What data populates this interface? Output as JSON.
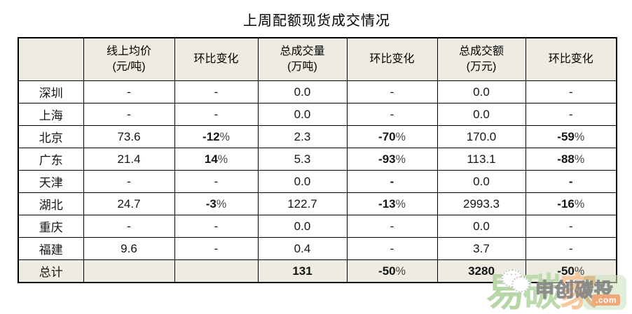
{
  "title": "上周配额现货成交情况",
  "colors": {
    "header_bg": "#EEECE1",
    "total_row_bg": "#EEECE1",
    "negative_green": "#00A650",
    "positive_red": "#C0504D",
    "border": "#000000",
    "watermark_green": "#B6D6A7",
    "watermark_orange": "#F5C9A0"
  },
  "table": {
    "column_headers": [
      "",
      "线上均价\n(元/吨)",
      "环比变化",
      "总成交量\n(万吨)",
      "环比变化",
      "总成交额\n(万元)",
      "环比变化"
    ],
    "rows": [
      {
        "region": "深圳",
        "is_total": false,
        "cells": [
          {
            "text": "-",
            "style": "normal"
          },
          {
            "text": "-",
            "style": "normal"
          },
          {
            "text": "0.0",
            "style": "normal"
          },
          {
            "text": "-",
            "style": "normal"
          },
          {
            "text": "0.0",
            "style": "normal"
          },
          {
            "text": "-",
            "style": "normal"
          }
        ]
      },
      {
        "region": "上海",
        "is_total": false,
        "cells": [
          {
            "text": "-",
            "style": "normal"
          },
          {
            "text": "-",
            "style": "normal"
          },
          {
            "text": "0.0",
            "style": "normal"
          },
          {
            "text": "-",
            "style": "normal"
          },
          {
            "text": "0.0",
            "style": "normal"
          },
          {
            "text": "-",
            "style": "normal"
          }
        ]
      },
      {
        "region": "北京",
        "is_total": false,
        "cells": [
          {
            "text": "73.6",
            "style": "normal"
          },
          {
            "text": "-12%",
            "style": "green"
          },
          {
            "text": "2.3",
            "style": "normal"
          },
          {
            "text": "-70%",
            "style": "green"
          },
          {
            "text": "170.0",
            "style": "normal"
          },
          {
            "text": "-59%",
            "style": "green"
          }
        ]
      },
      {
        "region": "广东",
        "is_total": false,
        "cells": [
          {
            "text": "21.4",
            "style": "normal"
          },
          {
            "text": "14%",
            "style": "red"
          },
          {
            "text": "5.3",
            "style": "normal"
          },
          {
            "text": "-93%",
            "style": "green"
          },
          {
            "text": "113.1",
            "style": "normal"
          },
          {
            "text": "-88%",
            "style": "green"
          }
        ]
      },
      {
        "region": "天津",
        "is_total": false,
        "cells": [
          {
            "text": "-",
            "style": "normal"
          },
          {
            "text": "-",
            "style": "normal"
          },
          {
            "text": "0.0",
            "style": "normal"
          },
          {
            "text": "-",
            "style": "bold"
          },
          {
            "text": "0.0",
            "style": "normal"
          },
          {
            "text": "-",
            "style": "bold"
          }
        ]
      },
      {
        "region": "湖北",
        "is_total": false,
        "cells": [
          {
            "text": "24.7",
            "style": "normal"
          },
          {
            "text": "-3%",
            "style": "green"
          },
          {
            "text": "122.7",
            "style": "normal"
          },
          {
            "text": "-13%",
            "style": "green"
          },
          {
            "text": "2993.3",
            "style": "normal"
          },
          {
            "text": "-16%",
            "style": "green"
          }
        ]
      },
      {
        "region": "重庆",
        "is_total": false,
        "cells": [
          {
            "text": "-",
            "style": "normal"
          },
          {
            "text": "-",
            "style": "normal"
          },
          {
            "text": "0.0",
            "style": "normal"
          },
          {
            "text": "-",
            "style": "normal"
          },
          {
            "text": "0.0",
            "style": "normal"
          },
          {
            "text": "-",
            "style": "normal"
          }
        ]
      },
      {
        "region": "福建",
        "is_total": false,
        "cells": [
          {
            "text": "9.6",
            "style": "normal"
          },
          {
            "text": "-",
            "style": "normal"
          },
          {
            "text": "0.4",
            "style": "normal"
          },
          {
            "text": "-",
            "style": "normal"
          },
          {
            "text": "3.7",
            "style": "normal"
          },
          {
            "text": "-",
            "style": "normal"
          }
        ]
      },
      {
        "region": "总计",
        "is_total": true,
        "cells": [
          {
            "text": "",
            "style": "normal"
          },
          {
            "text": "",
            "style": "normal"
          },
          {
            "text": "131",
            "style": "bold"
          },
          {
            "text": "-50%",
            "style": "green"
          },
          {
            "text": "3280",
            "style": "bold"
          },
          {
            "text": "-50%",
            "style": "green"
          }
        ]
      }
    ]
  },
  "watermark": {
    "brand_chars": [
      {
        "char": "易",
        "color": "#B6D6A7"
      },
      {
        "char": "碳",
        "color": "#BDDAAF"
      },
      {
        "char": "家",
        "color": "#F5C9A0"
      }
    ],
    "bubble_dots": "···",
    "outlined_text": "申创碳投",
    "dotcom_label": ".com"
  }
}
